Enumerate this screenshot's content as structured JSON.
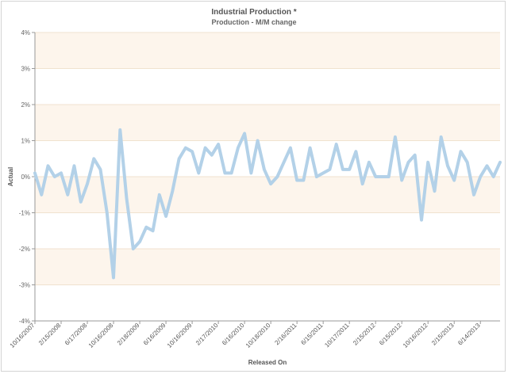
{
  "chart_data": {
    "type": "line",
    "title": "Industrial Production *",
    "subtitle": "Production - M/M change",
    "xlabel": "Released On",
    "ylabel": "Actual",
    "ylim": [
      -4,
      4
    ],
    "yticks": [
      -4,
      -3,
      -2,
      -1,
      0,
      1,
      2,
      3,
      4
    ],
    "ytick_labels": [
      "-4%",
      "-3%",
      "-2%",
      "-1%",
      "0%",
      "1%",
      "2%",
      "3%",
      "4%"
    ],
    "xticks": [
      {
        "label": "10/16/2007",
        "index": 0
      },
      {
        "label": "2/15/2008",
        "index": 4
      },
      {
        "label": "6/17/2008",
        "index": 8
      },
      {
        "label": "10/16/2008",
        "index": 12
      },
      {
        "label": "2/18/2009",
        "index": 16
      },
      {
        "label": "6/16/2009",
        "index": 20
      },
      {
        "label": "10/16/2009",
        "index": 24
      },
      {
        "label": "2/17/2010",
        "index": 28
      },
      {
        "label": "6/16/2010",
        "index": 32
      },
      {
        "label": "10/18/2010",
        "index": 36
      },
      {
        "label": "2/16/2011",
        "index": 40
      },
      {
        "label": "6/15/2011",
        "index": 44
      },
      {
        "label": "10/17/2011",
        "index": 48
      },
      {
        "label": "2/15/2012",
        "index": 52
      },
      {
        "label": "6/15/2012",
        "index": 56
      },
      {
        "label": "10/16/2012",
        "index": 60
      },
      {
        "label": "2/15/2013",
        "index": 64
      },
      {
        "label": "6/14/2013",
        "index": 68
      }
    ],
    "grid": "horizontal",
    "band_colors": [
      "#fdf5ec",
      "#ffffff"
    ],
    "line_color": "#b3d1e8",
    "series": [
      {
        "values": [
          0.1,
          -0.5,
          0.3,
          0.0,
          0.1,
          -0.5,
          0.3,
          -0.7,
          -0.2,
          0.5,
          0.2,
          -1.0,
          -2.8,
          1.3,
          -0.6,
          -2.0,
          -1.8,
          -1.4,
          -1.5,
          -0.5,
          -1.1,
          -0.4,
          0.5,
          0.8,
          0.7,
          0.1,
          0.8,
          0.6,
          0.9,
          0.1,
          0.1,
          0.8,
          1.2,
          0.1,
          1.0,
          0.2,
          -0.2,
          0.0,
          0.4,
          0.8,
          -0.1,
          -0.1,
          0.8,
          0.0,
          0.1,
          0.2,
          0.9,
          0.2,
          0.2,
          0.7,
          -0.2,
          0.4,
          0.0,
          0.0,
          0.0,
          1.1,
          -0.1,
          0.4,
          0.6,
          -1.2,
          0.4,
          -0.4,
          1.1,
          0.3,
          -0.1,
          0.7,
          0.4,
          -0.5,
          0.0,
          0.3,
          0.0,
          0.4
        ]
      }
    ]
  }
}
